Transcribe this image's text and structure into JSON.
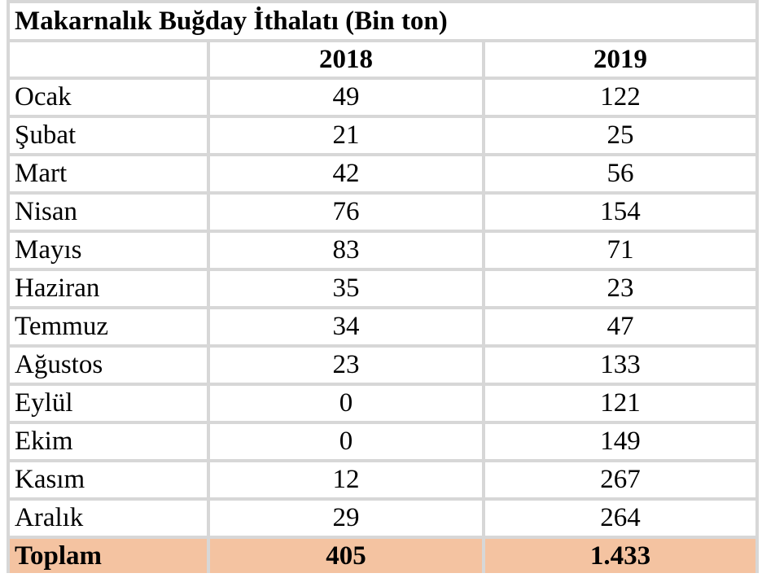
{
  "table": {
    "title": "Makarnalık Buğday İthalatı (Bin ton)",
    "corner": "",
    "columns": [
      "2018",
      "2019"
    ],
    "rows": [
      {
        "month": "Ocak",
        "v2018": "49",
        "v2019": "122"
      },
      {
        "month": "Şubat",
        "v2018": "21",
        "v2019": "25"
      },
      {
        "month": "Mart",
        "v2018": "42",
        "v2019": "56"
      },
      {
        "month": "Nisan",
        "v2018": "76",
        "v2019": "154"
      },
      {
        "month": "Mayıs",
        "v2018": "83",
        "v2019": "71"
      },
      {
        "month": "Haziran",
        "v2018": "35",
        "v2019": "23"
      },
      {
        "month": "Temmuz",
        "v2018": "34",
        "v2019": "47"
      },
      {
        "month": "Ağustos",
        "v2018": "23",
        "v2019": "133"
      },
      {
        "month": "Eylül",
        "v2018": "0",
        "v2019": "121"
      },
      {
        "month": "Ekim",
        "v2018": "0",
        "v2019": "149"
      },
      {
        "month": "Kasım",
        "v2018": "12",
        "v2019": "267"
      },
      {
        "month": "Aralık",
        "v2018": "29",
        "v2019": "264"
      }
    ],
    "total": {
      "label": "Toplam",
      "v2018": "405",
      "v2019": "1.433"
    }
  },
  "colors": {
    "grid": "#d7d7d7",
    "total_row_fill": "#f4c3a1",
    "text": "#000000"
  }
}
